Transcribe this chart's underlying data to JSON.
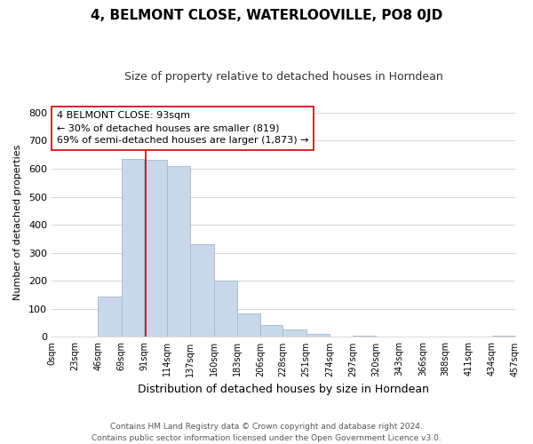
{
  "title": "4, BELMONT CLOSE, WATERLOOVILLE, PO8 0JD",
  "subtitle": "Size of property relative to detached houses in Horndean",
  "xlabel": "Distribution of detached houses by size in Horndean",
  "ylabel": "Number of detached properties",
  "bin_edges": [
    0,
    23,
    46,
    69,
    91,
    114,
    137,
    160,
    183,
    206,
    228,
    251,
    274,
    297,
    320,
    343,
    366,
    388,
    411,
    434,
    457
  ],
  "bin_labels": [
    "0sqm",
    "23sqm",
    "46sqm",
    "69sqm",
    "91sqm",
    "114sqm",
    "137sqm",
    "160sqm",
    "183sqm",
    "206sqm",
    "228sqm",
    "251sqm",
    "274sqm",
    "297sqm",
    "320sqm",
    "343sqm",
    "366sqm",
    "388sqm",
    "411sqm",
    "434sqm",
    "457sqm"
  ],
  "counts": [
    2,
    0,
    143,
    636,
    631,
    608,
    330,
    200,
    84,
    44,
    27,
    12,
    0,
    3,
    0,
    0,
    0,
    0,
    0,
    3
  ],
  "bar_color": "#c8d8ea",
  "bar_edgecolor": "#a0b8cc",
  "property_line_x": 93,
  "property_line_color": "#cc0000",
  "annotation_line1": "4 BELMONT CLOSE: 93sqm",
  "annotation_line2": "← 30% of detached houses are smaller (819)",
  "annotation_line3": "69% of semi-detached houses are larger (1,873) →",
  "annotation_box_color": "#ffffff",
  "annotation_box_edgecolor": "#cc0000",
  "ylim": [
    0,
    820
  ],
  "yticks": [
    0,
    100,
    200,
    300,
    400,
    500,
    600,
    700,
    800
  ],
  "footer_line1": "Contains HM Land Registry data © Crown copyright and database right 2024.",
  "footer_line2": "Contains public sector information licensed under the Open Government Licence v3.0.",
  "background_color": "#ffffff",
  "grid_color": "#d0d8e0"
}
